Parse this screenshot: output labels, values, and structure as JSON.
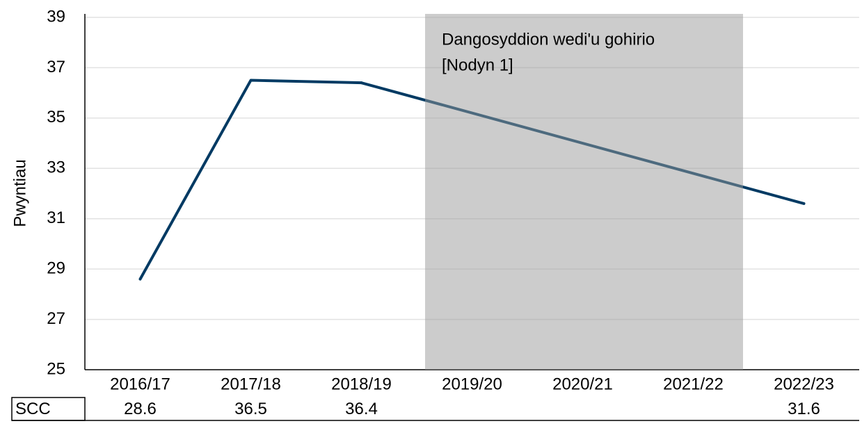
{
  "chart_data": {
    "type": "line",
    "y_label": "Pwyntiau",
    "categories": [
      "2016/17",
      "2017/18",
      "2018/19",
      "2019/20",
      "2020/21",
      "2021/22",
      "2022/23"
    ],
    "series": [
      {
        "name": "SCC",
        "color": "#003a63",
        "values": [
          28.6,
          36.5,
          36.4,
          null,
          null,
          null,
          31.6
        ]
      }
    ],
    "ylim": [
      25,
      39
    ],
    "yticks": [
      25,
      27,
      29,
      31,
      33,
      35,
      37,
      39
    ],
    "grid": true,
    "shaded": {
      "from": "2019/20",
      "to": "2021/22",
      "color": "#999999",
      "annotation": [
        "Dangosyddion wedi'u gohirio",
        "[Nodyn 1]"
      ]
    },
    "connect_gaps": true
  }
}
